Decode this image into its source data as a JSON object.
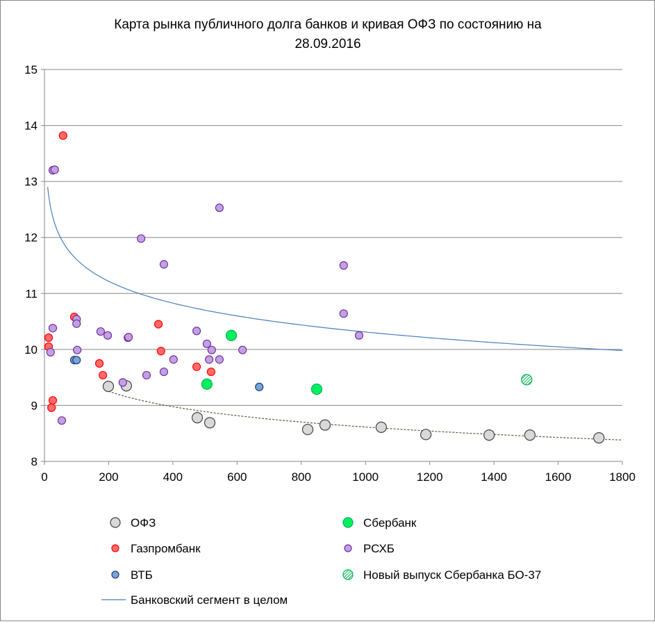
{
  "chart_data": {
    "type": "scatter",
    "title": [
      "Карта рынка публичного долга банков и кривая ОФЗ по состоянию на",
      "28.09.2016"
    ],
    "xlim": [
      0,
      1800
    ],
    "ylim": [
      8,
      15
    ],
    "xticks": [
      0,
      200,
      400,
      600,
      800,
      1000,
      1200,
      1400,
      1600,
      1800
    ],
    "yticks": [
      8,
      9,
      10,
      11,
      12,
      13,
      14,
      15
    ],
    "grid": "horizontal",
    "legend_position": "bottom",
    "series": [
      {
        "name": "ОФЗ",
        "color": "#d9d9d9",
        "stroke": "#404040",
        "size": "large",
        "points": [
          [
            199,
            9.34
          ],
          [
            255,
            9.35
          ],
          [
            476,
            8.78
          ],
          [
            515,
            8.69
          ],
          [
            820,
            8.57
          ],
          [
            874,
            8.65
          ],
          [
            1049,
            8.61
          ],
          [
            1188,
            8.48
          ],
          [
            1385,
            8.47
          ],
          [
            1512,
            8.47
          ],
          [
            1727,
            8.42
          ]
        ]
      },
      {
        "name": "Сбербанк",
        "color": "#00f060",
        "stroke": "#00b050",
        "size": "large",
        "points": [
          [
            582,
            10.25
          ],
          [
            506,
            9.38
          ],
          [
            848,
            9.29
          ]
        ]
      },
      {
        "name": "Газпромбанк",
        "color": "#ff6b6b",
        "stroke": "#ff0000",
        "size": "small",
        "points": [
          [
            58,
            13.82
          ],
          [
            13,
            10.21
          ],
          [
            13,
            10.05
          ],
          [
            93,
            10.58
          ],
          [
            26,
            9.09
          ],
          [
            22,
            8.96
          ],
          [
            171,
            9.75
          ],
          [
            182,
            9.54
          ],
          [
            355,
            10.45
          ],
          [
            363,
            9.97
          ],
          [
            474,
            9.69
          ],
          [
            519,
            9.6
          ]
        ]
      },
      {
        "name": "РСХБ",
        "color": "#c3a0e0",
        "stroke": "#7030a0",
        "size": "small",
        "points": [
          [
            26,
            13.2
          ],
          [
            32,
            13.21
          ],
          [
            26,
            10.38
          ],
          [
            19,
            9.95
          ],
          [
            100,
            10.54
          ],
          [
            100,
            10.46
          ],
          [
            102,
            9.99
          ],
          [
            54,
            8.73
          ],
          [
            301,
            11.98
          ],
          [
            372,
            11.52
          ],
          [
            545,
            12.53
          ],
          [
            932,
            11.5
          ],
          [
            932,
            10.64
          ],
          [
            980,
            10.25
          ],
          [
            175,
            10.32
          ],
          [
            197,
            10.25
          ],
          [
            260,
            10.21
          ],
          [
            262,
            10.22
          ],
          [
            244,
            9.41
          ],
          [
            318,
            9.54
          ],
          [
            372,
            9.6
          ],
          [
            402,
            9.82
          ],
          [
            474,
            10.33
          ],
          [
            506,
            10.1
          ],
          [
            513,
            9.82
          ],
          [
            521,
            9.99
          ],
          [
            545,
            9.82
          ],
          [
            617,
            9.99
          ]
        ]
      },
      {
        "name": "ВТБ",
        "color": "#7aa3dc",
        "stroke": "#1f3f6e",
        "size": "small",
        "points": [
          [
            93,
            9.81
          ],
          [
            100,
            9.81
          ],
          [
            669,
            9.33
          ]
        ]
      },
      {
        "name": "Новый выпуск Сбербанка БО-37",
        "color": "#00f060",
        "stroke": "#00b050",
        "size": "large",
        "pattern": "hatched",
        "points": [
          [
            1502,
            9.46
          ]
        ]
      }
    ],
    "trendlines": [
      {
        "name": "Банковский сегмент в целом",
        "color": "#4a7ebb",
        "style": "solid",
        "type": "log",
        "a": 14.2,
        "b": 0.563,
        "x_range": [
          10,
          1800
        ]
      },
      {
        "color": "#5a5a3a",
        "style": "dashed",
        "type": "log",
        "a": 11.35,
        "b": 0.396,
        "x_range": [
          199,
          1800
        ]
      }
    ],
    "legend_order": [
      "ОФЗ",
      "Сбербанк",
      "Газпромбанк",
      "РСХБ",
      "ВТБ",
      "Новый выпуск Сбербанка БО-37",
      "Банковский сегмент в целом"
    ]
  }
}
